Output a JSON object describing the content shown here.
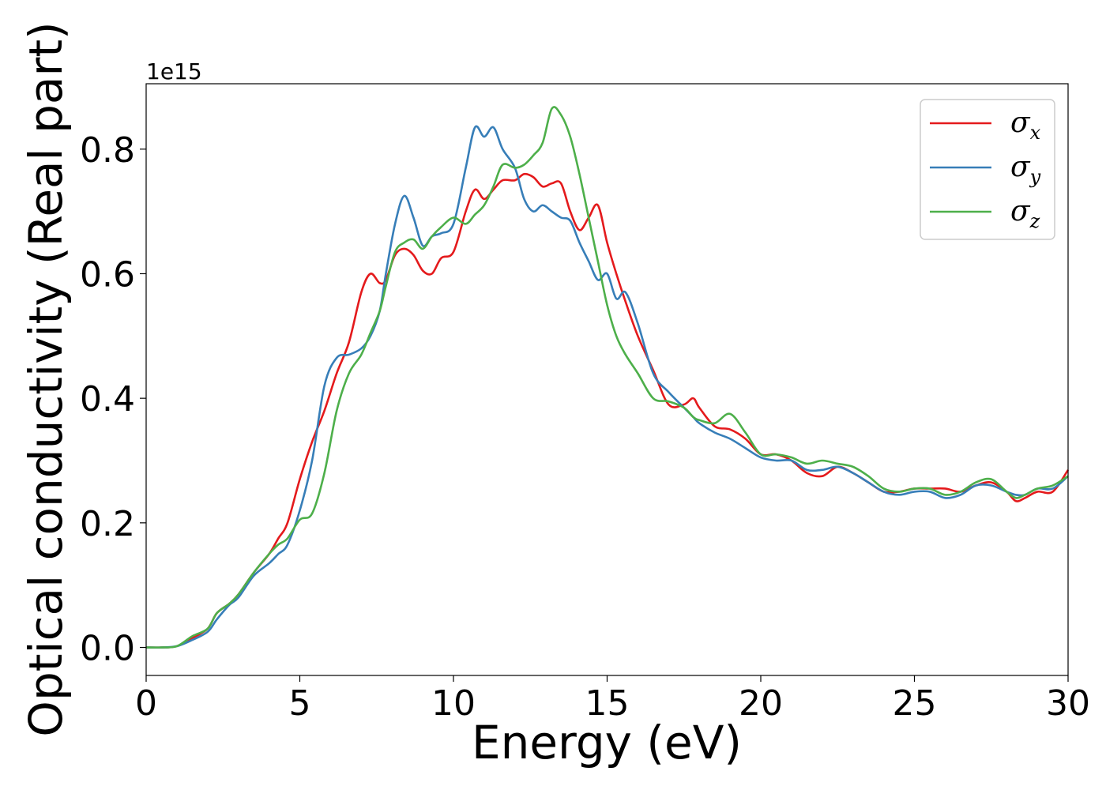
{
  "chart_data": {
    "type": "line",
    "xlabel": "Energy (eV)",
    "ylabel": "Optical conductivity (Real part)",
    "y_offset_label": "1e15",
    "xlim": [
      0,
      30
    ],
    "ylim": [
      -0.045,
      0.905
    ],
    "x_ticks": [
      0,
      5,
      10,
      15,
      20,
      25,
      30
    ],
    "x_tick_labels": [
      "0",
      "5",
      "10",
      "15",
      "20",
      "25",
      "30"
    ],
    "y_ticks": [
      0.0,
      0.2,
      0.4,
      0.6,
      0.8
    ],
    "y_tick_labels": [
      "0.0",
      "0.2",
      "0.4",
      "0.6",
      "0.8"
    ],
    "grid": false,
    "legend_position": "top-right",
    "series": [
      {
        "name": "σx",
        "symbol": "σ",
        "subscript": "x",
        "color": "#e41a1c",
        "x": [
          0,
          0.5,
          1,
          1.5,
          2,
          2.3,
          2.7,
          3,
          3.5,
          4,
          4.3,
          4.6,
          5,
          5.4,
          5.8,
          6.2,
          6.6,
          7,
          7.3,
          7.6,
          7.8,
          8.1,
          8.4,
          8.7,
          9,
          9.3,
          9.6,
          10,
          10.4,
          10.7,
          11,
          11.3,
          11.6,
          12,
          12.3,
          12.6,
          12.9,
          13.2,
          13.5,
          13.8,
          14.1,
          14.4,
          14.7,
          15,
          15.3,
          15.6,
          16,
          16.5,
          17,
          17.5,
          17.8,
          18,
          18.5,
          19,
          19.5,
          20,
          20.5,
          21,
          21.5,
          22,
          22.5,
          23,
          23.5,
          24,
          24.5,
          25,
          25.5,
          26,
          26.5,
          27,
          27.5,
          28,
          28.3,
          28.6,
          29,
          29.5,
          30
        ],
        "values": [
          0,
          0,
          0.002,
          0.015,
          0.03,
          0.055,
          0.07,
          0.085,
          0.12,
          0.15,
          0.175,
          0.2,
          0.27,
          0.33,
          0.38,
          0.44,
          0.49,
          0.57,
          0.6,
          0.585,
          0.59,
          0.63,
          0.64,
          0.63,
          0.605,
          0.6,
          0.625,
          0.635,
          0.7,
          0.735,
          0.72,
          0.735,
          0.75,
          0.75,
          0.76,
          0.755,
          0.74,
          0.745,
          0.745,
          0.7,
          0.67,
          0.69,
          0.71,
          0.65,
          0.6,
          0.555,
          0.5,
          0.445,
          0.39,
          0.39,
          0.4,
          0.385,
          0.355,
          0.35,
          0.335,
          0.31,
          0.31,
          0.3,
          0.28,
          0.275,
          0.29,
          0.28,
          0.265,
          0.25,
          0.25,
          0.255,
          0.255,
          0.255,
          0.25,
          0.26,
          0.265,
          0.25,
          0.235,
          0.24,
          0.25,
          0.25,
          0.285
        ]
      },
      {
        "name": "σy",
        "symbol": "σ",
        "subscript": "y",
        "color": "#377eb8",
        "x": [
          0,
          0.5,
          1,
          1.5,
          2,
          2.3,
          2.7,
          3,
          3.5,
          4,
          4.3,
          4.6,
          5,
          5.4,
          5.8,
          6.2,
          6.6,
          7,
          7.3,
          7.6,
          7.8,
          8.1,
          8.4,
          8.7,
          9,
          9.3,
          9.6,
          10,
          10.4,
          10.7,
          11,
          11.3,
          11.6,
          12,
          12.3,
          12.6,
          12.9,
          13.2,
          13.5,
          13.8,
          14.1,
          14.4,
          14.7,
          15,
          15.3,
          15.6,
          16,
          16.5,
          17,
          17.5,
          17.8,
          18,
          18.5,
          19,
          19.5,
          20,
          20.5,
          21,
          21.5,
          22,
          22.5,
          23,
          23.5,
          24,
          24.5,
          25,
          25.5,
          26,
          26.5,
          27,
          27.5,
          28,
          28.3,
          28.6,
          29,
          29.5,
          30
        ],
        "values": [
          0,
          0,
          0.002,
          0.012,
          0.025,
          0.045,
          0.068,
          0.08,
          0.115,
          0.135,
          0.15,
          0.165,
          0.22,
          0.3,
          0.42,
          0.465,
          0.47,
          0.48,
          0.5,
          0.54,
          0.6,
          0.68,
          0.725,
          0.69,
          0.645,
          0.66,
          0.665,
          0.68,
          0.77,
          0.835,
          0.82,
          0.835,
          0.8,
          0.77,
          0.72,
          0.7,
          0.71,
          0.7,
          0.69,
          0.685,
          0.65,
          0.62,
          0.59,
          0.6,
          0.56,
          0.57,
          0.52,
          0.44,
          0.41,
          0.385,
          0.37,
          0.36,
          0.345,
          0.335,
          0.32,
          0.305,
          0.3,
          0.3,
          0.285,
          0.285,
          0.29,
          0.28,
          0.265,
          0.25,
          0.245,
          0.25,
          0.25,
          0.24,
          0.245,
          0.26,
          0.26,
          0.25,
          0.245,
          0.245,
          0.255,
          0.255,
          0.275
        ]
      },
      {
        "name": "σz",
        "symbol": "σ",
        "subscript": "z",
        "color": "#4daf4a",
        "x": [
          0,
          0.5,
          1,
          1.5,
          2,
          2.3,
          2.7,
          3,
          3.5,
          4,
          4.3,
          4.6,
          5,
          5.4,
          5.8,
          6.2,
          6.6,
          7,
          7.3,
          7.6,
          7.8,
          8.1,
          8.4,
          8.7,
          9,
          9.3,
          9.6,
          10,
          10.4,
          10.7,
          11,
          11.3,
          11.6,
          12,
          12.3,
          12.6,
          12.9,
          13.2,
          13.5,
          13.8,
          14.1,
          14.4,
          14.7,
          15,
          15.3,
          15.6,
          16,
          16.5,
          17,
          17.5,
          17.8,
          18,
          18.5,
          19,
          19.5,
          20,
          20.5,
          21,
          21.5,
          22,
          22.5,
          23,
          23.5,
          24,
          24.5,
          25,
          25.5,
          26,
          26.5,
          27,
          27.5,
          28,
          28.3,
          28.6,
          29,
          29.5,
          30
        ],
        "values": [
          0,
          0,
          0.002,
          0.018,
          0.03,
          0.055,
          0.07,
          0.085,
          0.12,
          0.15,
          0.165,
          0.175,
          0.205,
          0.215,
          0.28,
          0.38,
          0.44,
          0.47,
          0.505,
          0.54,
          0.58,
          0.635,
          0.65,
          0.655,
          0.64,
          0.66,
          0.675,
          0.69,
          0.68,
          0.695,
          0.71,
          0.74,
          0.775,
          0.77,
          0.775,
          0.79,
          0.81,
          0.865,
          0.855,
          0.82,
          0.76,
          0.69,
          0.62,
          0.55,
          0.5,
          0.47,
          0.44,
          0.4,
          0.395,
          0.385,
          0.37,
          0.365,
          0.36,
          0.375,
          0.345,
          0.31,
          0.31,
          0.305,
          0.295,
          0.3,
          0.295,
          0.29,
          0.275,
          0.255,
          0.25,
          0.255,
          0.255,
          0.245,
          0.25,
          0.265,
          0.27,
          0.25,
          0.24,
          0.245,
          0.255,
          0.26,
          0.275
        ]
      }
    ]
  }
}
